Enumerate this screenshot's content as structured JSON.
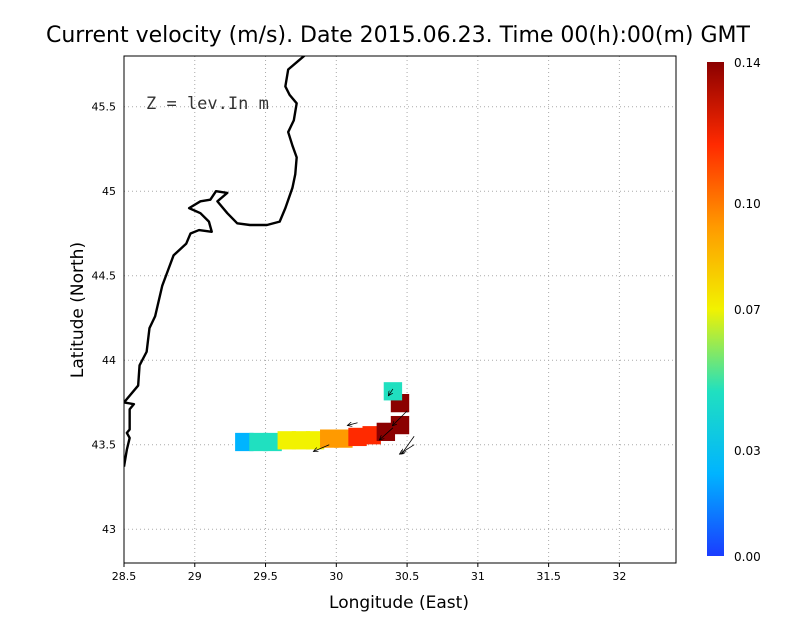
{
  "title": "Current velocity (m/s). Date 2015.06.23. Time 00(h):00(m) GMT",
  "annotation": "Z = lev.In m",
  "chart_data": {
    "type": "heatmap",
    "title": "Current velocity (m/s). Date 2015.06.23. Time 00(h):00(m) GMT",
    "xlabel": "Longitude (East)",
    "ylabel": "Latitude (North)",
    "xlim": [
      28.5,
      32.4
    ],
    "ylim": [
      42.8,
      45.8
    ],
    "x_ticks": [
      "28.5",
      "29",
      "29.5",
      "30",
      "30.5",
      "31",
      "31.5",
      "32"
    ],
    "y_ticks": [
      "43",
      "43.5",
      "44",
      "44.5",
      "45",
      "45.5"
    ],
    "grid": true,
    "colorbar": {
      "label_ticks": [
        "0.00",
        "0.03",
        "0.07",
        "0.10",
        "0.14"
      ],
      "range": [
        0.0,
        0.14
      ],
      "colormap": [
        "#1a3cff",
        "#00b4ff",
        "#20e0c0",
        "#f2f200",
        "#ff9a00",
        "#ff2a00",
        "#8b0000"
      ]
    },
    "velocity_field": [
      {
        "lon": 29.35,
        "lat": 43.52,
        "speed": 0.02
      },
      {
        "lon": 29.45,
        "lat": 43.52,
        "speed": 0.04
      },
      {
        "lon": 29.55,
        "lat": 43.52,
        "speed": 0.05
      },
      {
        "lon": 29.65,
        "lat": 43.53,
        "speed": 0.06
      },
      {
        "lon": 29.75,
        "lat": 43.53,
        "speed": 0.07
      },
      {
        "lon": 29.85,
        "lat": 43.53,
        "speed": 0.08
      },
      {
        "lon": 29.95,
        "lat": 43.54,
        "speed": 0.09
      },
      {
        "lon": 30.05,
        "lat": 43.54,
        "speed": 0.1
      },
      {
        "lon": 30.15,
        "lat": 43.55,
        "speed": 0.11
      },
      {
        "lon": 30.25,
        "lat": 43.56,
        "speed": 0.12
      },
      {
        "lon": 30.35,
        "lat": 43.58,
        "speed": 0.13
      },
      {
        "lon": 30.45,
        "lat": 43.62,
        "speed": 0.14
      },
      {
        "lon": 30.45,
        "lat": 43.75,
        "speed": 0.13
      },
      {
        "lon": 30.4,
        "lat": 43.82,
        "speed": 0.05
      }
    ],
    "arrows": [
      {
        "lon": 30.15,
        "lat": 43.63,
        "u": -0.09,
        "v": -0.02
      },
      {
        "lon": 30.4,
        "lat": 43.83,
        "u": -0.04,
        "v": -0.05
      },
      {
        "lon": 30.4,
        "lat": 43.6,
        "u": -0.12,
        "v": -0.09
      },
      {
        "lon": 30.5,
        "lat": 43.7,
        "u": -0.13,
        "v": -0.11
      },
      {
        "lon": 30.55,
        "lat": 43.55,
        "u": -0.11,
        "v": -0.13
      },
      {
        "lon": 30.55,
        "lat": 43.5,
        "u": -0.13,
        "v": -0.07
      },
      {
        "lon": 29.95,
        "lat": 43.5,
        "u": -0.14,
        "v": -0.05
      }
    ],
    "coastline": [
      [
        28.5,
        43.37
      ],
      [
        28.52,
        43.47
      ],
      [
        28.54,
        43.54
      ],
      [
        28.52,
        43.57
      ],
      [
        28.54,
        43.59
      ],
      [
        28.54,
        43.71
      ],
      [
        28.57,
        43.74
      ],
      [
        28.5,
        43.75
      ],
      [
        28.6,
        43.85
      ],
      [
        28.61,
        43.97
      ],
      [
        28.66,
        44.05
      ],
      [
        28.68,
        44.19
      ],
      [
        28.72,
        44.26
      ],
      [
        28.77,
        44.44
      ],
      [
        28.81,
        44.53
      ],
      [
        28.85,
        44.62
      ],
      [
        28.94,
        44.69
      ],
      [
        28.97,
        44.75
      ],
      [
        29.03,
        44.77
      ],
      [
        29.12,
        44.76
      ],
      [
        29.1,
        44.82
      ],
      [
        29.04,
        44.87
      ],
      [
        28.96,
        44.9
      ],
      [
        29.04,
        44.94
      ],
      [
        29.11,
        44.95
      ],
      [
        29.15,
        45.0
      ],
      [
        29.23,
        44.99
      ],
      [
        29.16,
        44.94
      ],
      [
        29.23,
        44.87
      ],
      [
        29.3,
        44.81
      ],
      [
        29.39,
        44.8
      ],
      [
        29.51,
        44.8
      ],
      [
        29.6,
        44.82
      ],
      [
        29.64,
        44.9
      ],
      [
        29.69,
        45.02
      ],
      [
        29.71,
        45.1
      ],
      [
        29.72,
        45.2
      ],
      [
        29.69,
        45.27
      ],
      [
        29.66,
        45.35
      ],
      [
        29.7,
        45.42
      ],
      [
        29.72,
        45.52
      ],
      [
        29.67,
        45.57
      ],
      [
        29.64,
        45.62
      ],
      [
        29.66,
        45.72
      ],
      [
        29.73,
        45.77
      ],
      [
        29.8,
        45.82
      ]
    ]
  }
}
